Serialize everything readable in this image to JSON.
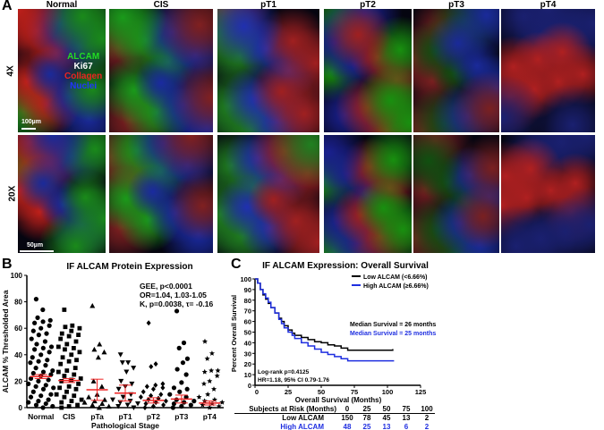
{
  "panelA": {
    "label": "A",
    "columns": [
      "Normal",
      "CIS",
      "pT1",
      "pT2",
      "pT3",
      "pT4"
    ],
    "rows": [
      "4X",
      "20X"
    ],
    "legend": [
      {
        "text": "ALCAM",
        "color": "#22dd22"
      },
      {
        "text": "Ki67",
        "color": "#ffffff"
      },
      {
        "text": "Collagen",
        "color": "#ee2222"
      },
      {
        "text": "Nuclei",
        "color": "#2233ff"
      }
    ],
    "scalebar_4x": "100µm",
    "scalebar_20x": "50µm"
  },
  "panelB": {
    "label": "B",
    "stats": [
      "GEE, p<0.0001",
      "OR=1.04, 1.03-1.05",
      "K, p=0.0038, τ= -0.16"
    ]
  },
  "panelC": {
    "label": "C",
    "risk_table": {
      "header": "Subjects at Risk (Months)",
      "times": [
        "0",
        "25",
        "50",
        "75",
        "100"
      ],
      "rows": [
        {
          "label": "Low ALCAM",
          "values": [
            "150",
            "78",
            "45",
            "13",
            "2"
          ],
          "color": "#000000"
        },
        {
          "label": "High ALCAM",
          "values": [
            "48",
            "25",
            "13",
            "6",
            "2"
          ],
          "color": "#1f2fe0"
        }
      ]
    }
  },
  "chart_data": [
    {
      "type": "scatter",
      "title": "IF ALCAM Protein Expression",
      "xlabel": "Pathological Stage",
      "ylabel": "ALCAM % Thresholded Area",
      "ylim": [
        0,
        100
      ],
      "yticks": [
        "0",
        "20",
        "40",
        "60",
        "80",
        "100"
      ],
      "categories": [
        "Normal",
        "CIS",
        "pTa",
        "pT1",
        "pT2",
        "pT3",
        "pT4"
      ],
      "markers": [
        "circle",
        "square",
        "triangle",
        "triangle-down",
        "diamond",
        "hexagon",
        "star"
      ],
      "mean": [
        23.5,
        20.5,
        13.5,
        11,
        5.5,
        6.5,
        3.5
      ],
      "sem": [
        1.5,
        1.5,
        8,
        6,
        2,
        3,
        1.5
      ],
      "mean_color": "#ee2222",
      "series": [
        {
          "values": [
            82,
            74,
            68,
            66,
            65,
            64,
            62,
            60,
            58,
            56,
            55,
            52,
            50,
            48,
            46,
            45,
            44,
            42,
            40,
            38,
            36,
            35,
            34,
            32,
            30,
            28,
            27,
            26,
            25,
            24,
            22,
            21,
            20,
            18,
            17,
            16,
            15,
            14,
            12,
            10,
            9,
            8,
            6,
            5,
            4,
            3,
            2,
            1,
            0
          ]
        },
        {
          "values": [
            74,
            62,
            61,
            60,
            58,
            56,
            55,
            54,
            52,
            50,
            48,
            46,
            45,
            44,
            42,
            40,
            38,
            36,
            35,
            33,
            30,
            28,
            27,
            25,
            24,
            22,
            21,
            20,
            18,
            16,
            15,
            14,
            12,
            10,
            9,
            8,
            6,
            5,
            4,
            2,
            1,
            0
          ]
        },
        {
          "values": [
            77,
            48,
            44,
            42,
            38,
            20,
            16,
            10,
            8,
            6,
            5,
            4,
            3,
            2,
            1,
            0
          ]
        },
        {
          "values": [
            40,
            34,
            34,
            30,
            27,
            20,
            18,
            16,
            14,
            10,
            8,
            6,
            5,
            4,
            3,
            2,
            1,
            0
          ]
        },
        {
          "values": [
            64,
            33,
            31,
            18,
            17,
            16,
            15,
            14,
            12,
            10,
            9,
            8,
            7,
            6,
            5,
            4,
            3,
            2,
            1,
            0
          ]
        },
        {
          "values": [
            73,
            49,
            45,
            37,
            34,
            29,
            25,
            19,
            15,
            14,
            12,
            10,
            8,
            6,
            5,
            4,
            3,
            2,
            1,
            0
          ]
        },
        {
          "values": [
            50,
            41,
            37,
            28,
            28,
            27,
            24,
            20,
            18,
            14,
            10,
            8,
            6,
            5,
            4,
            3,
            2,
            1,
            0
          ]
        }
      ]
    },
    {
      "type": "line",
      "title": "IF ALCAM Expression: Overall Survival",
      "xlabel": "Overall Survival (Months)",
      "ylabel": "Percent Overall Survival",
      "xlim": [
        0,
        125
      ],
      "ylim": [
        0,
        100
      ],
      "xticks": [
        "0",
        "25",
        "50",
        "75",
        "100",
        "125"
      ],
      "yticks": [
        "0",
        "10",
        "20",
        "30",
        "40",
        "50",
        "60",
        "70",
        "80",
        "90",
        "100"
      ],
      "legend_position": "top-right",
      "annotations": [
        "Median Survival = 26 months",
        "Median Survival = 25 months",
        "Log-rank p=0.4125",
        "HR=1.18, 95% CI 0.79-1.76"
      ],
      "series": [
        {
          "name": "Low ALCAM (<6.66%)",
          "color": "#000000",
          "x": [
            0,
            2,
            4,
            6,
            8,
            10,
            12,
            15,
            18,
            20,
            22,
            25,
            28,
            30,
            35,
            40,
            45,
            50,
            55,
            60,
            65,
            70,
            80,
            90,
            104
          ],
          "y": [
            100,
            96,
            90,
            85,
            81,
            77,
            73,
            68,
            63,
            60,
            56,
            52,
            49,
            47,
            45,
            43,
            41,
            40,
            38,
            37,
            35,
            33,
            33,
            33,
            34
          ]
        },
        {
          "name": "High ALCAM (≥6.66%)",
          "color": "#1f2fe0",
          "x": [
            0,
            2,
            4,
            6,
            8,
            10,
            12,
            15,
            18,
            20,
            22,
            25,
            28,
            30,
            35,
            40,
            45,
            50,
            55,
            60,
            65,
            70,
            80,
            90,
            105
          ],
          "y": [
            100,
            96,
            90,
            86,
            82,
            78,
            73,
            68,
            62,
            58,
            54,
            50,
            47,
            44,
            40,
            37,
            34,
            31,
            29,
            27,
            25,
            23,
            23,
            23,
            23
          ]
        }
      ]
    }
  ]
}
